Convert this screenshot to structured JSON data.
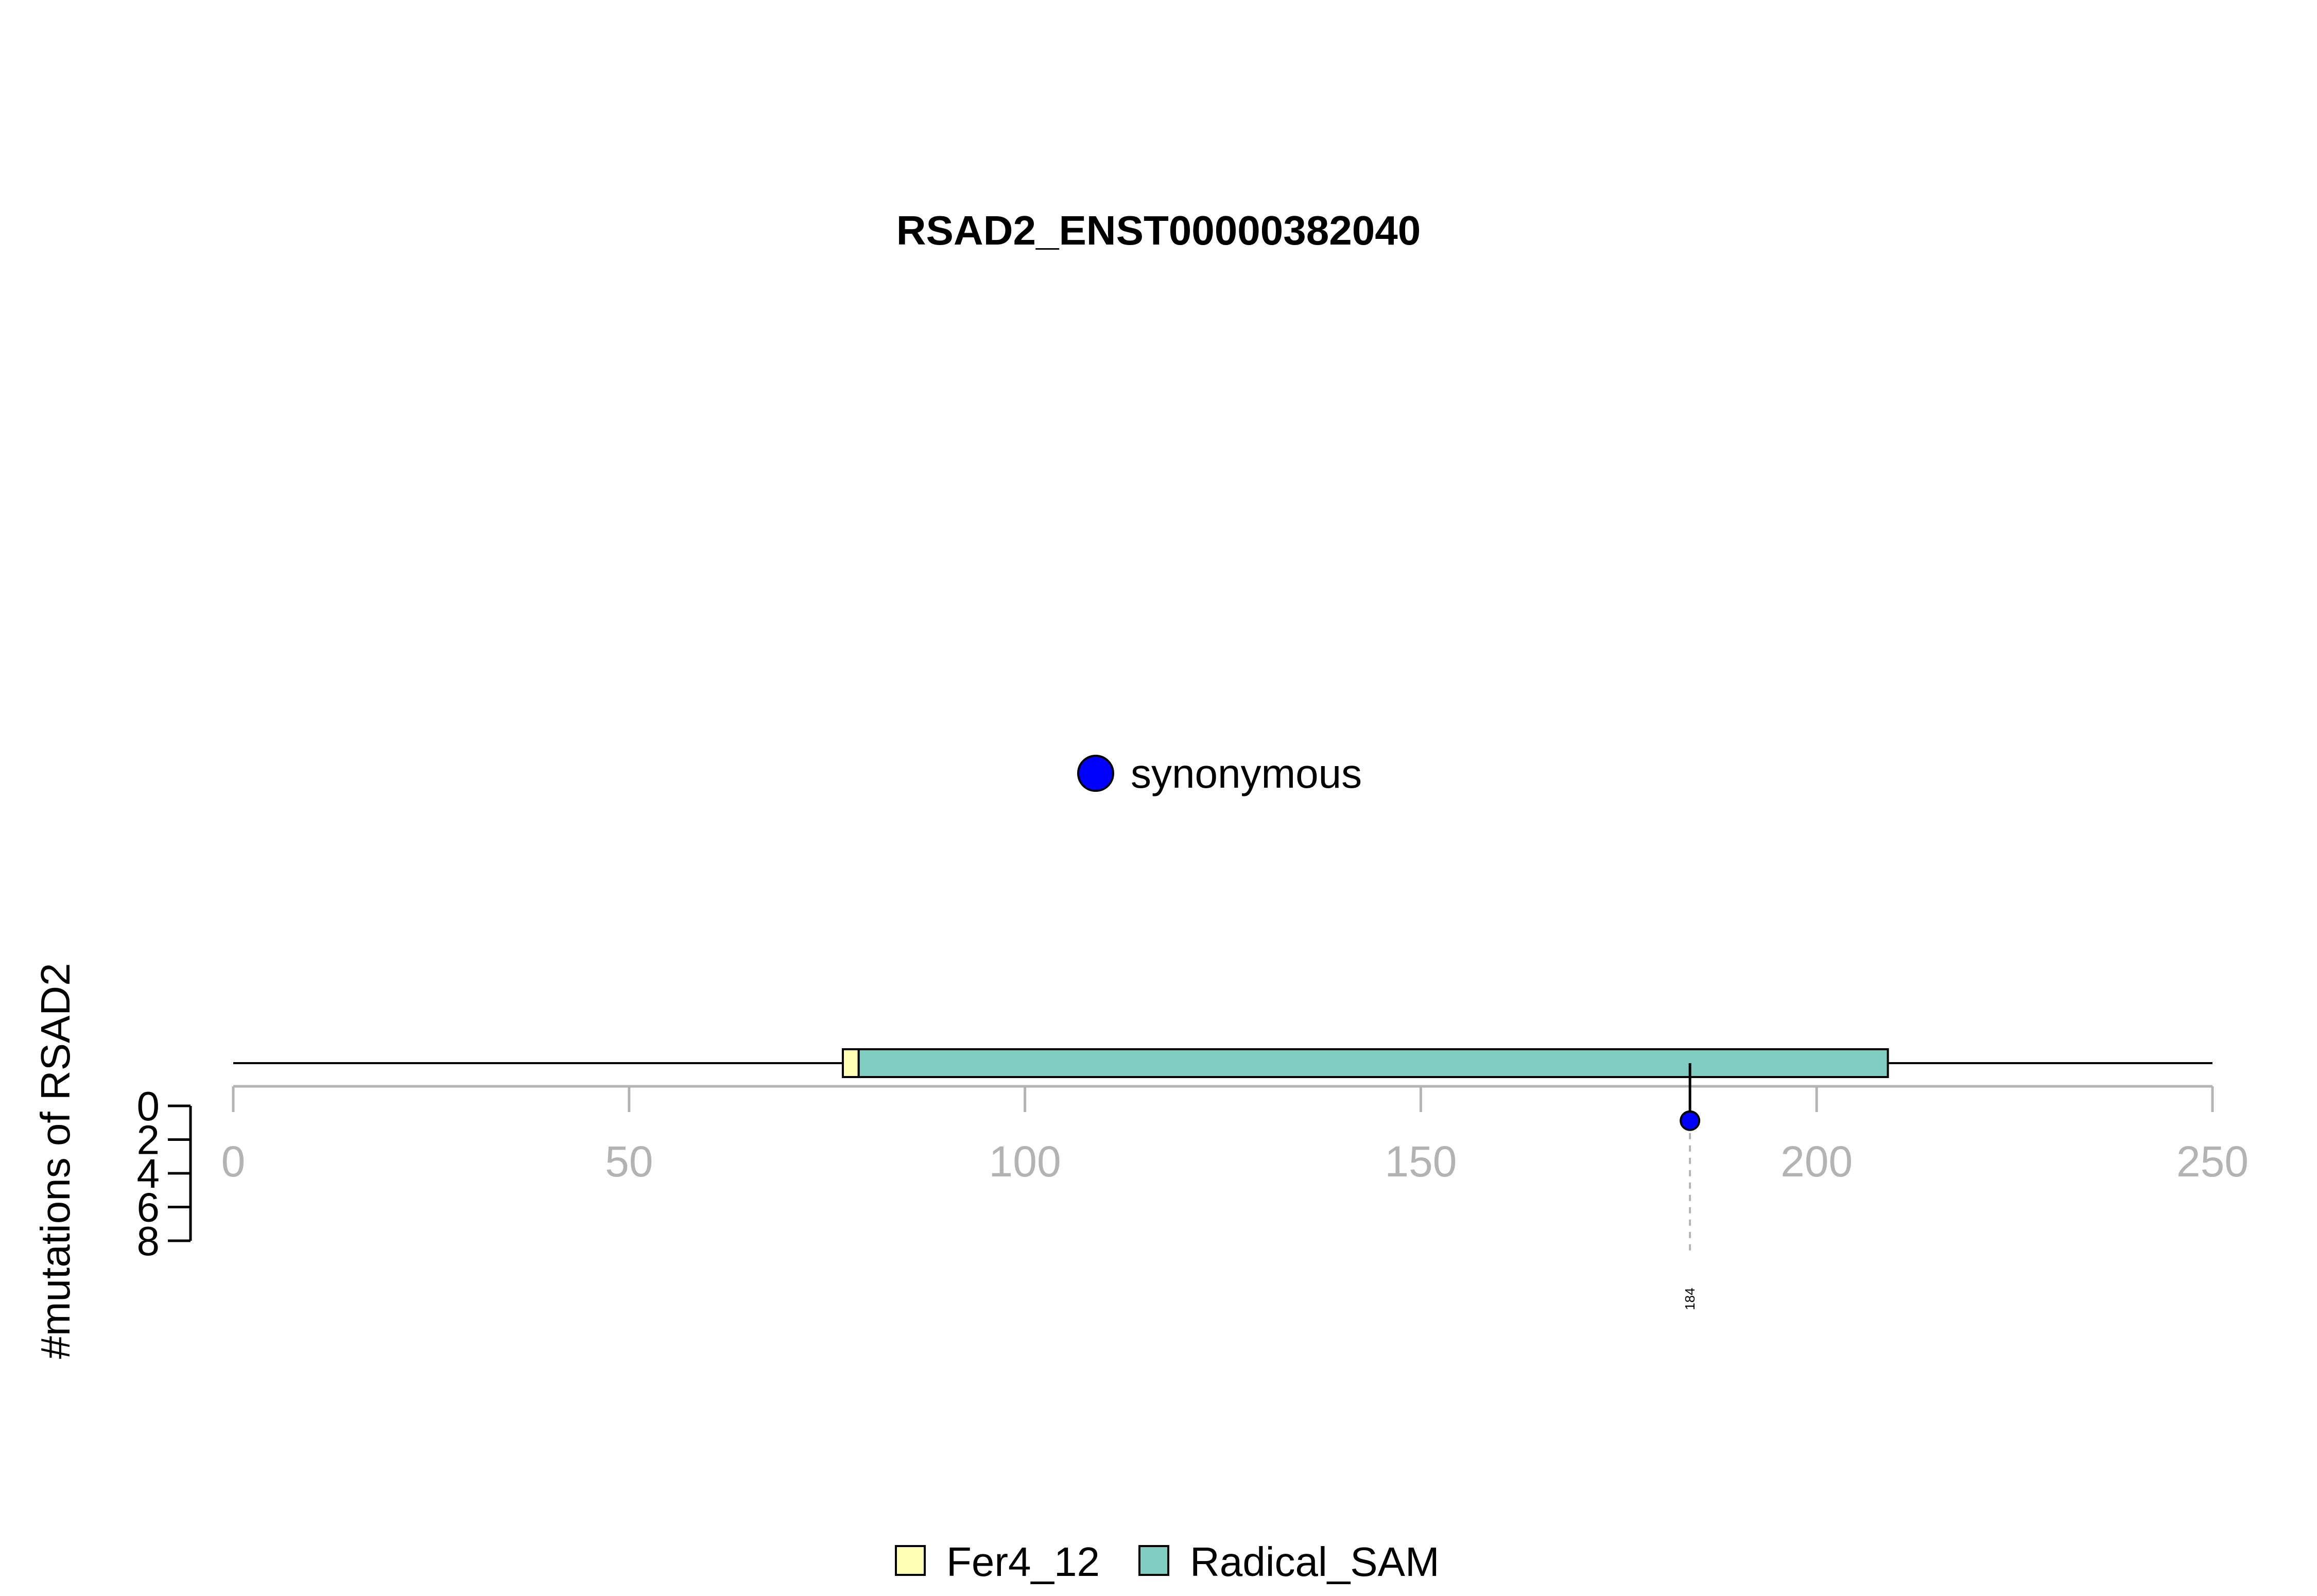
{
  "chart_data": {
    "type": "lollipop",
    "title": "RSAD2_ENST00000382040",
    "ylabel": "#mutations of RSAD2",
    "xlim": [
      0,
      250
    ],
    "x_ticks": [
      0,
      50,
      100,
      150,
      200,
      250
    ],
    "ylim": [
      0,
      8
    ],
    "y_ticks": [
      0,
      2,
      4,
      6,
      8
    ],
    "grid": false,
    "protein_length": 250,
    "domains": [
      {
        "name": "Fer4_12",
        "start": 77,
        "end": 79,
        "color": "#FFFFB3"
      },
      {
        "name": "Radical_SAM",
        "start": 79,
        "end": 209,
        "color": "#80CDC1"
      }
    ],
    "mutations": [
      {
        "position": 184,
        "count": 1,
        "type": "synonymous",
        "label": "184",
        "color": "#0000FF"
      }
    ],
    "mutation_legend": [
      {
        "label": "synonymous",
        "color": "#0000FF"
      }
    ],
    "domain_legend": [
      {
        "label": "Fer4_12",
        "color": "#FFFFB3"
      },
      {
        "label": "Radical_SAM",
        "color": "#80CDC1"
      }
    ],
    "legend_placement": [
      "center",
      "bottom-center"
    ]
  }
}
